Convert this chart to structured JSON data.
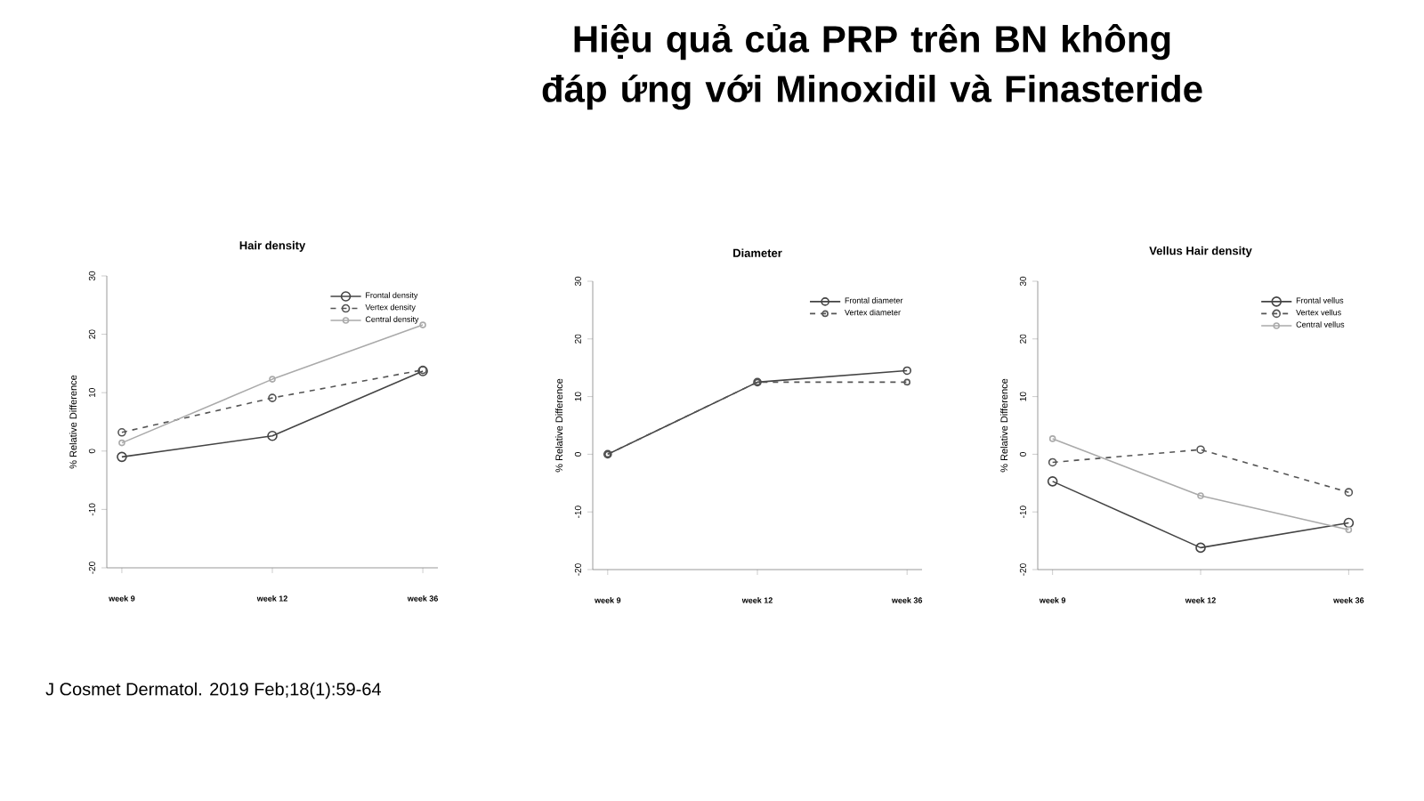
{
  "chart_data": [
    {
      "type": "line",
      "title": "Hair density",
      "ylabel": "% Relative Difference",
      "categories": [
        "week 9",
        "week 12",
        "week 36"
      ],
      "ylim": [
        -20,
        30
      ],
      "yticks": [
        -20,
        -10,
        0,
        10,
        20,
        30
      ],
      "marker": "circle",
      "legend": "top right",
      "grid": false,
      "annotations": [
        "Hiệu quả của PRP trên BN không đáp ứng với Minoxidil và Finasteride",
        "J Cosmet Dermatol. 2019 Feb;18(1):59-64"
      ],
      "series": [
        {
          "name": "Frontal density",
          "color": "#444444",
          "line_style": "solid",
          "values": [
            -1,
            2.6,
            13.7
          ]
        },
        {
          "name": "Vertex density",
          "color": "#555555",
          "line_style": "dashed",
          "values": [
            3.2,
            9.1,
            13.9
          ]
        },
        {
          "name": "Central density",
          "color": "#aaaaaa",
          "line_style": "solid",
          "values": [
            1.4,
            12.3,
            21.6
          ]
        }
      ]
    },
    {
      "type": "line",
      "title": "Diameter",
      "ylabel": "% Relative Difference",
      "categories": [
        "week 9",
        "week 12",
        "week 36"
      ],
      "ylim": [
        -20,
        30
      ],
      "yticks": [
        -20,
        -10,
        0,
        10,
        20,
        30
      ],
      "marker": "circle",
      "legend": "top right",
      "grid": false,
      "series": [
        {
          "name": "Frontal diameter",
          "color": "#444444",
          "line_style": "solid",
          "values": [
            0,
            12.5,
            14.5
          ]
        },
        {
          "name": "Vertex diameter",
          "color": "#555555",
          "line_style": "dashed",
          "values": [
            0,
            12.5,
            12.5
          ]
        }
      ]
    },
    {
      "type": "line",
      "title": "Vellus Hair density",
      "ylabel": "% Relative Difference",
      "categories": [
        "week 9",
        "week 12",
        "week 36"
      ],
      "ylim": [
        -20,
        30
      ],
      "yticks": [
        -20,
        -10,
        0,
        10,
        20,
        30
      ],
      "marker": "circle",
      "legend": "top right",
      "grid": false,
      "series": [
        {
          "name": "Frontal vellus",
          "color": "#444444",
          "line_style": "solid",
          "values": [
            -4.7,
            -16.2,
            -11.9
          ]
        },
        {
          "name": "Vertex vellus",
          "color": "#555555",
          "line_style": "dashed",
          "values": [
            -1.4,
            0.8,
            -6.6
          ]
        },
        {
          "name": "Central vellus",
          "color": "#aaaaaa",
          "line_style": "solid",
          "values": [
            2.7,
            -7.2,
            -13.1
          ]
        }
      ]
    }
  ]
}
